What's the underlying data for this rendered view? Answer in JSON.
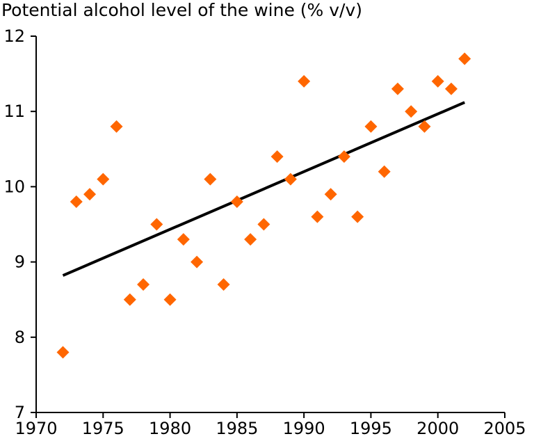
{
  "chart_data": {
    "type": "scatter",
    "title": "Potential alcohol level of the wine (% v/v)",
    "xlim": [
      1970,
      2005
    ],
    "ylim": [
      7,
      12
    ],
    "x_ticks": [
      "1970",
      "1975",
      "1980",
      "1985",
      "1990",
      "1995",
      "2000",
      "2005"
    ],
    "y_ticks": [
      "7",
      "8",
      "9",
      "10",
      "11",
      "12"
    ],
    "grid": false,
    "colors": {
      "points": "#ff6600",
      "trend": "#000000"
    },
    "points": [
      {
        "x": 1972,
        "y": 7.8
      },
      {
        "x": 1973,
        "y": 9.8
      },
      {
        "x": 1974,
        "y": 9.9
      },
      {
        "x": 1975,
        "y": 10.1
      },
      {
        "x": 1976,
        "y": 10.8
      },
      {
        "x": 1977,
        "y": 8.5
      },
      {
        "x": 1978,
        "y": 8.7
      },
      {
        "x": 1979,
        "y": 9.5
      },
      {
        "x": 1980,
        "y": 8.5
      },
      {
        "x": 1981,
        "y": 9.3
      },
      {
        "x": 1982,
        "y": 9.0
      },
      {
        "x": 1983,
        "y": 10.1
      },
      {
        "x": 1984,
        "y": 8.7
      },
      {
        "x": 1985,
        "y": 9.8
      },
      {
        "x": 1986,
        "y": 9.3
      },
      {
        "x": 1987,
        "y": 9.5
      },
      {
        "x": 1988,
        "y": 10.4
      },
      {
        "x": 1989,
        "y": 10.1
      },
      {
        "x": 1990,
        "y": 11.4
      },
      {
        "x": 1991,
        "y": 9.6
      },
      {
        "x": 1992,
        "y": 9.9
      },
      {
        "x": 1993,
        "y": 10.4
      },
      {
        "x": 1994,
        "y": 9.6
      },
      {
        "x": 1995,
        "y": 10.8
      },
      {
        "x": 1996,
        "y": 10.2
      },
      {
        "x": 1997,
        "y": 11.3
      },
      {
        "x": 1998,
        "y": 11.0
      },
      {
        "x": 1999,
        "y": 10.8
      },
      {
        "x": 2000,
        "y": 11.4
      },
      {
        "x": 2001,
        "y": 11.3
      },
      {
        "x": 2002,
        "y": 11.7
      }
    ],
    "trendline": {
      "x": [
        1972,
        2002
      ],
      "y": [
        8.82,
        11.12
      ]
    }
  }
}
